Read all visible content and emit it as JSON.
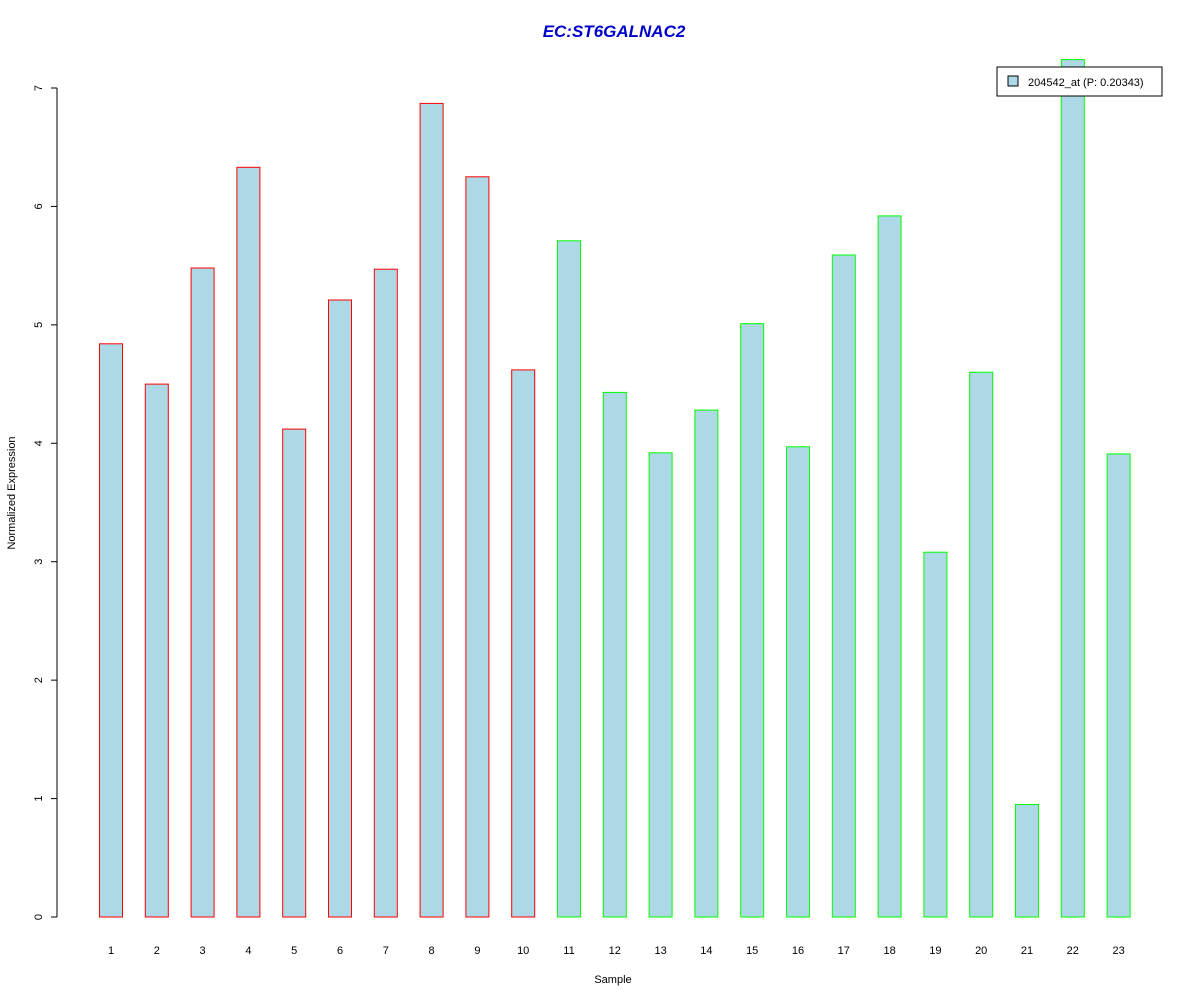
{
  "chart_data": {
    "type": "bar",
    "title": "EC:ST6GALNAC2",
    "xlabel": "Sample",
    "ylabel": "Normalized Expression",
    "categories": [
      "1",
      "2",
      "3",
      "4",
      "5",
      "6",
      "7",
      "8",
      "9",
      "10",
      "11",
      "12",
      "13",
      "14",
      "15",
      "16",
      "17",
      "18",
      "19",
      "20",
      "21",
      "22",
      "23"
    ],
    "series": [
      {
        "name": "204542_at (P: 0.20343)",
        "values": [
          4.84,
          4.5,
          5.48,
          6.33,
          4.12,
          5.21,
          5.47,
          6.87,
          6.25,
          4.62,
          5.71,
          4.43,
          3.92,
          4.28,
          5.01,
          3.97,
          5.59,
          5.92,
          3.08,
          4.6,
          0.95,
          7.24,
          3.91
        ]
      }
    ],
    "yticks": [
      "0",
      "1",
      "2",
      "3",
      "4",
      "5",
      "6",
      "7"
    ],
    "ylim": [
      0,
      7
    ],
    "grid": false,
    "legend_position": "top-right",
    "colors": {
      "title": "#0000cc",
      "bar_fill": "#add8e6",
      "group1_border": "#ff0000",
      "group2_border": "#00ff00"
    },
    "border_groups": [
      "red",
      "red",
      "red",
      "red",
      "red",
      "red",
      "red",
      "red",
      "red",
      "red",
      "green",
      "green",
      "green",
      "green",
      "green",
      "green",
      "green",
      "green",
      "green",
      "green",
      "green",
      "green",
      "green"
    ]
  }
}
